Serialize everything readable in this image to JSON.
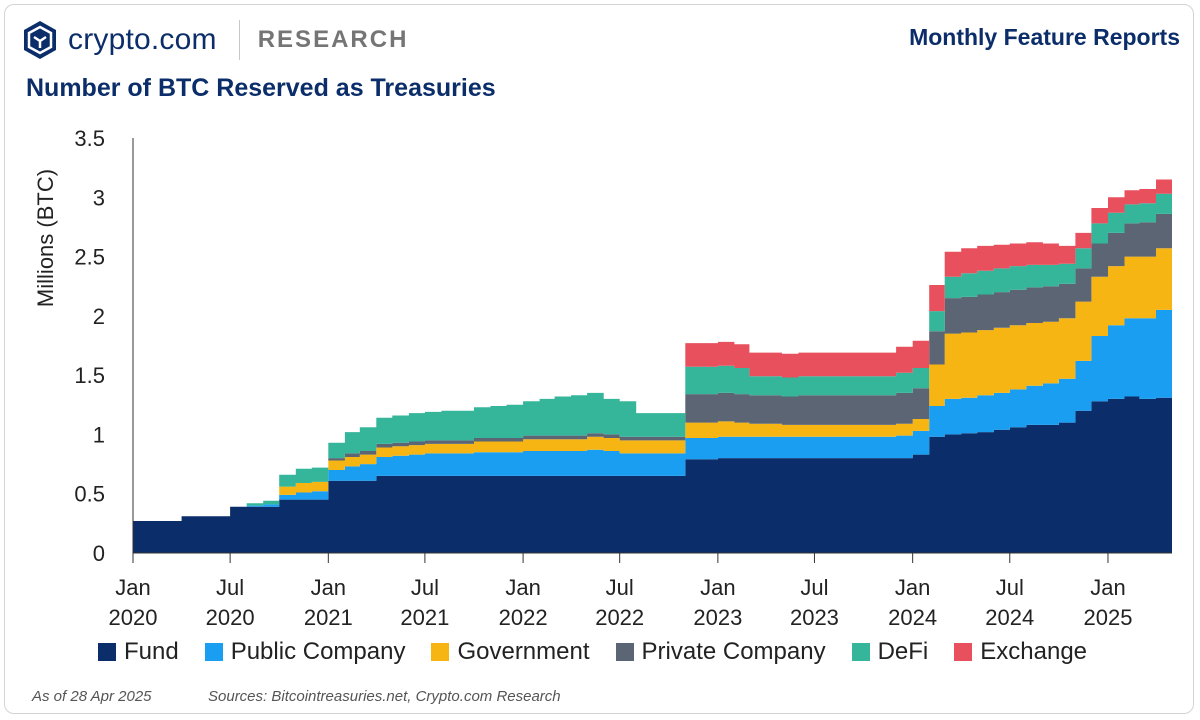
{
  "header": {
    "logo_text": "crypto.com",
    "research_label": "RESEARCH",
    "report_link": "Monthly Feature Reports"
  },
  "chart_data": {
    "type": "area",
    "stacked": true,
    "title": "Number of BTC Reserved as Treasuries",
    "ylabel": "Millions (BTC)",
    "ylim": [
      0,
      3.5
    ],
    "yticks": [
      0,
      0.5,
      1,
      1.5,
      2,
      2.5,
      3,
      3.5
    ],
    "ytick_labels": [
      "0",
      "0.5",
      "1",
      "1.5",
      "2",
      "2.5",
      "3",
      "3.5"
    ],
    "xticks": [
      {
        "date": "2020-01",
        "label": [
          "Jan",
          "2020"
        ]
      },
      {
        "date": "2020-07",
        "label": [
          "Jul",
          "2020"
        ]
      },
      {
        "date": "2021-01",
        "label": [
          "Jan",
          "2021"
        ]
      },
      {
        "date": "2021-07",
        "label": [
          "Jul",
          "2021"
        ]
      },
      {
        "date": "2022-01",
        "label": [
          "Jan",
          "2022"
        ]
      },
      {
        "date": "2022-07",
        "label": [
          "Jul",
          "2022"
        ]
      },
      {
        "date": "2023-01",
        "label": [
          "Jan",
          "2023"
        ]
      },
      {
        "date": "2023-07",
        "label": [
          "Jul",
          "2023"
        ]
      },
      {
        "date": "2024-01",
        "label": [
          "Jan",
          "2024"
        ]
      },
      {
        "date": "2024-07",
        "label": [
          "Jul",
          "2024"
        ]
      },
      {
        "date": "2025-01",
        "label": [
          "Jan",
          "2025"
        ]
      }
    ],
    "x": [
      "2020-01",
      "2020-02",
      "2020-03",
      "2020-04",
      "2020-05",
      "2020-06",
      "2020-07",
      "2020-08",
      "2020-09",
      "2020-10",
      "2020-11",
      "2020-12",
      "2021-01",
      "2021-02",
      "2021-03",
      "2021-04",
      "2021-05",
      "2021-06",
      "2021-07",
      "2021-08",
      "2021-09",
      "2021-10",
      "2021-11",
      "2021-12",
      "2022-01",
      "2022-02",
      "2022-03",
      "2022-04",
      "2022-05",
      "2022-06",
      "2022-07",
      "2022-08",
      "2022-09",
      "2022-10",
      "2022-11",
      "2022-12",
      "2023-01",
      "2023-02",
      "2023-03",
      "2023-04",
      "2023-05",
      "2023-06",
      "2023-07",
      "2023-08",
      "2023-09",
      "2023-10",
      "2023-11",
      "2023-12",
      "2024-01",
      "2024-02",
      "2024-03",
      "2024-04",
      "2024-05",
      "2024-06",
      "2024-07",
      "2024-08",
      "2024-09",
      "2024-10",
      "2024-11",
      "2024-12",
      "2025-01",
      "2025-02",
      "2025-03",
      "2025-04"
    ],
    "series": [
      {
        "name": "Fund",
        "color": "#0b2d6a",
        "values": [
          0.27,
          0.27,
          0.27,
          0.31,
          0.31,
          0.31,
          0.39,
          0.39,
          0.39,
          0.45,
          0.45,
          0.45,
          0.61,
          0.61,
          0.61,
          0.65,
          0.65,
          0.65,
          0.65,
          0.65,
          0.65,
          0.65,
          0.65,
          0.65,
          0.65,
          0.65,
          0.65,
          0.65,
          0.65,
          0.65,
          0.65,
          0.65,
          0.65,
          0.65,
          0.79,
          0.79,
          0.8,
          0.8,
          0.8,
          0.8,
          0.8,
          0.8,
          0.8,
          0.8,
          0.8,
          0.8,
          0.8,
          0.8,
          0.83,
          0.98,
          1.0,
          1.01,
          1.02,
          1.04,
          1.06,
          1.08,
          1.08,
          1.1,
          1.2,
          1.28,
          1.3,
          1.32,
          1.3,
          1.31
        ]
      },
      {
        "name": "Public Company",
        "color": "#1a9ef2",
        "values": [
          0,
          0,
          0,
          0,
          0,
          0,
          0,
          0.01,
          0.02,
          0.04,
          0.06,
          0.07,
          0.09,
          0.12,
          0.14,
          0.16,
          0.17,
          0.18,
          0.19,
          0.19,
          0.19,
          0.2,
          0.2,
          0.2,
          0.21,
          0.21,
          0.21,
          0.21,
          0.22,
          0.21,
          0.19,
          0.19,
          0.19,
          0.19,
          0.18,
          0.18,
          0.18,
          0.18,
          0.18,
          0.18,
          0.18,
          0.18,
          0.18,
          0.18,
          0.18,
          0.18,
          0.18,
          0.19,
          0.2,
          0.26,
          0.3,
          0.3,
          0.31,
          0.31,
          0.32,
          0.33,
          0.35,
          0.37,
          0.42,
          0.55,
          0.62,
          0.66,
          0.68,
          0.74
        ]
      },
      {
        "name": "Government",
        "color": "#f7b514",
        "values": [
          0,
          0,
          0,
          0,
          0,
          0,
          0,
          0,
          0,
          0.07,
          0.08,
          0.08,
          0.08,
          0.08,
          0.08,
          0.08,
          0.08,
          0.08,
          0.08,
          0.08,
          0.08,
          0.09,
          0.09,
          0.09,
          0.1,
          0.1,
          0.1,
          0.1,
          0.11,
          0.11,
          0.11,
          0.11,
          0.11,
          0.11,
          0.13,
          0.13,
          0.13,
          0.12,
          0.11,
          0.11,
          0.1,
          0.1,
          0.1,
          0.1,
          0.1,
          0.1,
          0.1,
          0.1,
          0.1,
          0.35,
          0.55,
          0.55,
          0.55,
          0.55,
          0.54,
          0.53,
          0.52,
          0.51,
          0.5,
          0.5,
          0.5,
          0.52,
          0.52,
          0.52
        ]
      },
      {
        "name": "Private Company",
        "color": "#5b6573",
        "values": [
          0,
          0,
          0,
          0,
          0,
          0,
          0,
          0,
          0,
          0,
          0,
          0,
          0.02,
          0.03,
          0.03,
          0.03,
          0.03,
          0.03,
          0.03,
          0.03,
          0.03,
          0.03,
          0.03,
          0.03,
          0.03,
          0.03,
          0.03,
          0.03,
          0.03,
          0.03,
          0.03,
          0.03,
          0.03,
          0.03,
          0.24,
          0.24,
          0.24,
          0.24,
          0.24,
          0.24,
          0.24,
          0.25,
          0.25,
          0.25,
          0.25,
          0.25,
          0.25,
          0.26,
          0.26,
          0.28,
          0.3,
          0.3,
          0.3,
          0.3,
          0.3,
          0.3,
          0.3,
          0.29,
          0.28,
          0.28,
          0.28,
          0.28,
          0.29,
          0.29
        ]
      },
      {
        "name": "DeFi",
        "color": "#35b59a",
        "values": [
          0,
          0,
          0,
          0,
          0,
          0,
          0,
          0.02,
          0.03,
          0.1,
          0.12,
          0.12,
          0.13,
          0.18,
          0.2,
          0.22,
          0.23,
          0.24,
          0.24,
          0.25,
          0.25,
          0.26,
          0.27,
          0.28,
          0.29,
          0.31,
          0.33,
          0.34,
          0.34,
          0.3,
          0.3,
          0.2,
          0.2,
          0.2,
          0.23,
          0.23,
          0.23,
          0.22,
          0.16,
          0.16,
          0.16,
          0.16,
          0.16,
          0.16,
          0.16,
          0.16,
          0.16,
          0.17,
          0.17,
          0.17,
          0.18,
          0.2,
          0.2,
          0.2,
          0.2,
          0.19,
          0.18,
          0.17,
          0.17,
          0.17,
          0.17,
          0.16,
          0.16,
          0.17
        ]
      },
      {
        "name": "Exchange",
        "color": "#e8505e",
        "values": [
          0,
          0,
          0,
          0,
          0,
          0,
          0,
          0,
          0,
          0,
          0,
          0,
          0,
          0,
          0,
          0,
          0,
          0,
          0,
          0,
          0,
          0,
          0,
          0,
          0,
          0,
          0,
          0,
          0,
          0,
          0,
          0,
          0,
          0,
          0.2,
          0.2,
          0.2,
          0.2,
          0.2,
          0.2,
          0.2,
          0.2,
          0.2,
          0.2,
          0.2,
          0.2,
          0.2,
          0.22,
          0.23,
          0.22,
          0.21,
          0.21,
          0.21,
          0.2,
          0.19,
          0.19,
          0.18,
          0.15,
          0.13,
          0.13,
          0.13,
          0.12,
          0.12,
          0.12
        ]
      }
    ],
    "legend": "bottom",
    "grid": false
  },
  "footer": {
    "as_of": "As of 28 Apr 2025",
    "sources": "Sources: Bitcointreasuries.net, Crypto.com Research"
  }
}
